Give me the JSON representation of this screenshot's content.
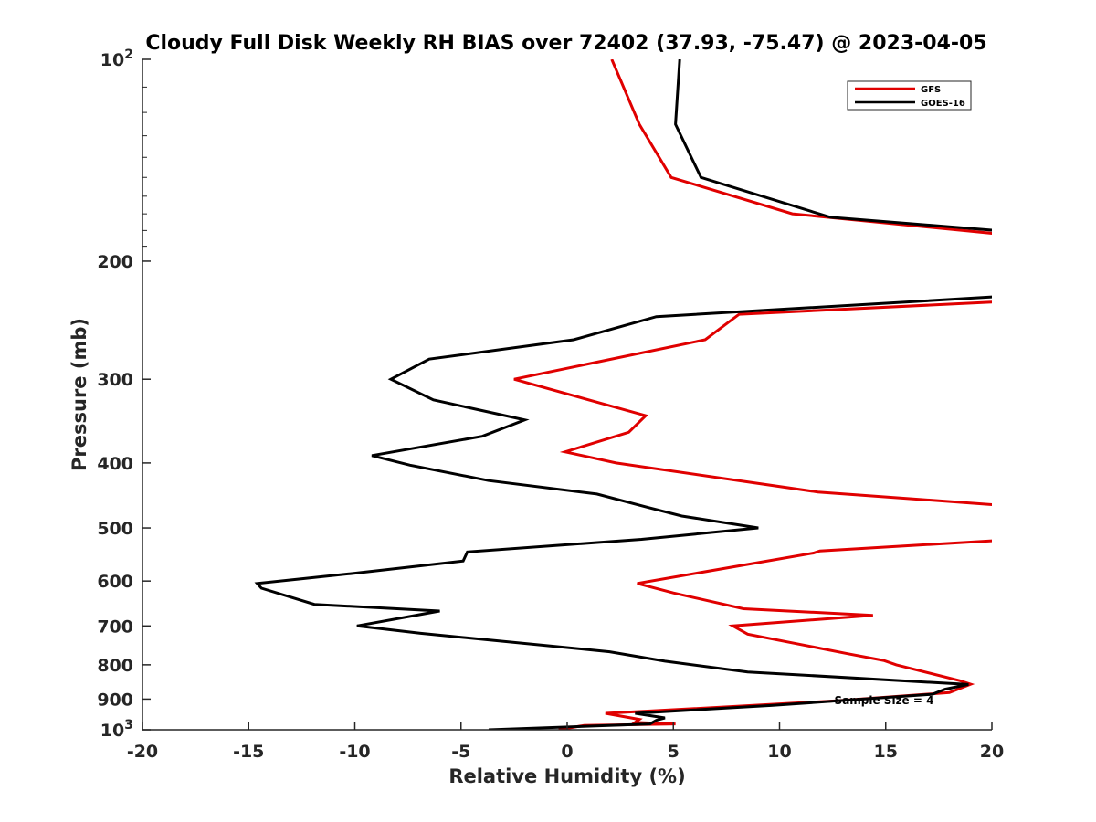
{
  "chart_data": {
    "type": "line",
    "title": "Cloudy Full Disk Weekly RH BIAS over 72402 (37.93, -75.47) @ 2023-04-05",
    "xlabel": "Relative Humidity (%)",
    "ylabel": "Pressure (mb)",
    "xlim": [
      -20,
      20
    ],
    "ylim": [
      1000,
      100
    ],
    "yscale": "log",
    "yreversed": true,
    "grid": false,
    "x_ticks": [
      -20,
      -15,
      -10,
      -5,
      0,
      5,
      10,
      15,
      20
    ],
    "x_tick_labels": [
      "-20",
      "-15",
      "-10",
      "-5",
      "0",
      "5",
      "10",
      "15",
      "20"
    ],
    "y_ticks": [
      {
        "value": 100,
        "base": "10",
        "exp": "2",
        "label": ""
      },
      {
        "value": 200,
        "base": "",
        "exp": "",
        "label": "200"
      },
      {
        "value": 300,
        "base": "",
        "exp": "",
        "label": "300"
      },
      {
        "value": 400,
        "base": "",
        "exp": "",
        "label": "400"
      },
      {
        "value": 500,
        "base": "",
        "exp": "",
        "label": "500"
      },
      {
        "value": 600,
        "base": "",
        "exp": "",
        "label": "600"
      },
      {
        "value": 700,
        "base": "",
        "exp": "",
        "label": "700"
      },
      {
        "value": 800,
        "base": "",
        "exp": "",
        "label": "800"
      },
      {
        "value": 900,
        "base": "",
        "exp": "",
        "label": "900"
      },
      {
        "value": 1000,
        "base": "10",
        "exp": "3",
        "label": ""
      }
    ],
    "legend_position": "top-right",
    "annotation": "Sample Size = 4",
    "series": [
      {
        "name": "GFS",
        "color": "#e00000",
        "points": [
          [
            2.1,
            100
          ],
          [
            3.4,
            125
          ],
          [
            4.9,
            150
          ],
          [
            10.6,
            170
          ],
          [
            20.2,
            182
          ],
          [
            20.2,
            230
          ],
          [
            8.1,
            240
          ],
          [
            6.5,
            262
          ],
          [
            -2.5,
            300
          ],
          [
            3.7,
            340
          ],
          [
            2.9,
            360
          ],
          [
            -0.1,
            385
          ],
          [
            2.3,
            400
          ],
          [
            11.8,
            442
          ],
          [
            20.2,
            462
          ],
          [
            20.2,
            522
          ],
          [
            11.9,
            541
          ],
          [
            11.6,
            545
          ],
          [
            3.3,
            605
          ],
          [
            5.0,
            625
          ],
          [
            8.3,
            660
          ],
          [
            14.4,
            675
          ],
          [
            7.8,
            700
          ],
          [
            8.5,
            720
          ],
          [
            13.2,
            770
          ],
          [
            14.9,
            788
          ],
          [
            15.5,
            800
          ],
          [
            18.5,
            845
          ],
          [
            19.0,
            855
          ],
          [
            18.0,
            880
          ],
          [
            12.7,
            905
          ],
          [
            5.9,
            930
          ],
          [
            1.8,
            945
          ],
          [
            3.4,
            965
          ],
          [
            3.2,
            975
          ],
          [
            5.1,
            980
          ],
          [
            0.8,
            985
          ],
          [
            -0.4,
            1000
          ]
        ]
      },
      {
        "name": "GOES-16",
        "color": "#000000",
        "points": [
          [
            5.3,
            100
          ],
          [
            5.1,
            125
          ],
          [
            6.3,
            150
          ],
          [
            12.4,
            172
          ],
          [
            20.2,
            180
          ],
          [
            20.2,
            226
          ],
          [
            4.2,
            242
          ],
          [
            0.3,
            262
          ],
          [
            -6.5,
            280
          ],
          [
            -8.3,
            300
          ],
          [
            -6.3,
            322
          ],
          [
            -2.0,
            345
          ],
          [
            -4.0,
            365
          ],
          [
            -9.2,
            390
          ],
          [
            -7.4,
            403
          ],
          [
            -3.7,
            425
          ],
          [
            1.4,
            445
          ],
          [
            3.8,
            466
          ],
          [
            5.4,
            480
          ],
          [
            9.0,
            500
          ],
          [
            3.5,
            520
          ],
          [
            -4.7,
            543
          ],
          [
            -4.9,
            560
          ],
          [
            -10.2,
            585
          ],
          [
            -14.6,
            605
          ],
          [
            -14.4,
            615
          ],
          [
            -11.9,
            650
          ],
          [
            -6.0,
            665
          ],
          [
            -9.9,
            700
          ],
          [
            -6.9,
            718
          ],
          [
            2.0,
            765
          ],
          [
            4.6,
            790
          ],
          [
            8.5,
            820
          ],
          [
            18.9,
            856
          ],
          [
            17.8,
            870
          ],
          [
            17.2,
            885
          ],
          [
            9.6,
            920
          ],
          [
            3.2,
            945
          ],
          [
            4.6,
            960
          ],
          [
            4.2,
            968
          ],
          [
            3.9,
            980
          ],
          [
            -3.7,
            1000
          ]
        ]
      }
    ]
  }
}
